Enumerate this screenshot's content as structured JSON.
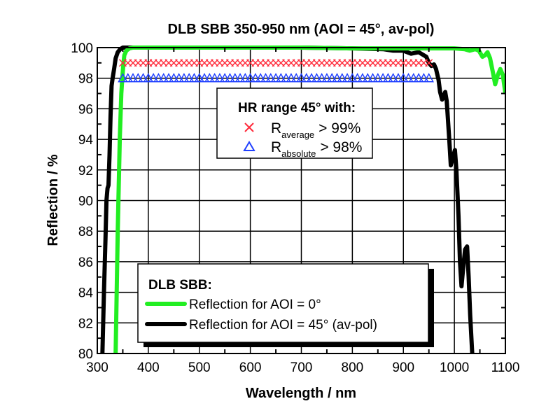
{
  "chart_data": {
    "type": "line",
    "title": "DLB SBB 350-950 nm (AOI = 45°, av-pol)",
    "xlabel": "Wavelength / nm",
    "ylabel": "Reflection / %",
    "xlim": [
      300,
      1100
    ],
    "ylim": [
      80,
      100
    ],
    "xticks": [
      "300",
      "400",
      "500",
      "600",
      "700",
      "800",
      "900",
      "1000",
      "1100"
    ],
    "yticks": [
      "80",
      "82",
      "84",
      "86",
      "88",
      "90",
      "92",
      "94",
      "96",
      "98",
      "100"
    ],
    "grid": true,
    "legend_main": {
      "title": "DLB SBB:",
      "placement": "bottom-center"
    },
    "legend_hr": {
      "title": "HR range 45° with:",
      "placement": "top-center",
      "entries": [
        {
          "symbol": "x",
          "color": "#ff2a3a",
          "label": "R",
          "sub": "average",
          "suffix": "> 99%"
        },
        {
          "symbol": "triangle",
          "color": "#2040ff",
          "label": "R",
          "sub": "absolute",
          "suffix": "> 98%"
        }
      ]
    },
    "series": [
      {
        "name": "Reflection for AOI = 0°",
        "color": "#22ee22",
        "x": [
          336,
          340,
          344,
          347,
          349,
          351,
          353,
          357,
          363,
          370,
          400,
          500,
          600,
          700,
          800,
          900,
          1000,
          1020,
          1030,
          1041,
          1048,
          1055,
          1060,
          1065,
          1070,
          1076,
          1080,
          1085,
          1090,
          1095,
          1100
        ],
        "y": [
          80,
          88,
          94,
          97,
          98,
          98.9,
          99.5,
          99.8,
          99.95,
          100,
          100,
          100,
          100,
          100,
          99.95,
          99.95,
          99.95,
          99.9,
          99.8,
          99.9,
          99.8,
          99.4,
          99.5,
          99.7,
          99.3,
          98.3,
          97.6,
          98.2,
          98.6,
          98.2,
          97
        ]
      },
      {
        "name": "Reflection for AOI = 45° (av-pol)",
        "color": "#000000",
        "x": [
          310,
          313,
          316,
          318,
          320,
          322,
          324,
          326,
          328,
          330,
          333,
          336,
          340,
          345,
          350,
          400,
          500,
          600,
          700,
          800,
          860,
          880,
          900,
          915,
          930,
          945,
          950,
          955,
          960,
          964,
          969,
          972,
          976,
          979,
          982,
          985,
          990,
          993,
          997,
          1001,
          1004,
          1008,
          1011,
          1014,
          1017,
          1021,
          1025,
          1028,
          1031,
          1035
        ],
        "y": [
          80,
          84,
          87.5,
          90,
          90.8,
          91,
          93,
          95.5,
          97.5,
          98,
          98.6,
          99.3,
          99.7,
          99.9,
          100,
          100,
          100,
          100,
          100,
          99.95,
          99.9,
          99.8,
          99.8,
          99.6,
          99.7,
          99.4,
          99.0,
          98.8,
          98.9,
          98.6,
          97.9,
          97.1,
          96.6,
          96.8,
          97.1,
          96.5,
          94,
          92.3,
          92.8,
          93.3,
          92,
          89,
          86,
          84.4,
          85.5,
          86.8,
          87,
          85,
          82.5,
          80
        ]
      }
    ],
    "markers": [
      {
        "name": "R_average > 99%",
        "symbol": "x",
        "color": "#ff2a3a",
        "x_start": 350,
        "x_end": 950,
        "x_step": 10,
        "y": 99
      },
      {
        "name": "R_absolute > 98%",
        "symbol": "triangle",
        "color": "#2040ff",
        "x_start": 350,
        "x_end": 950,
        "x_step": 10,
        "y": 98
      }
    ]
  }
}
